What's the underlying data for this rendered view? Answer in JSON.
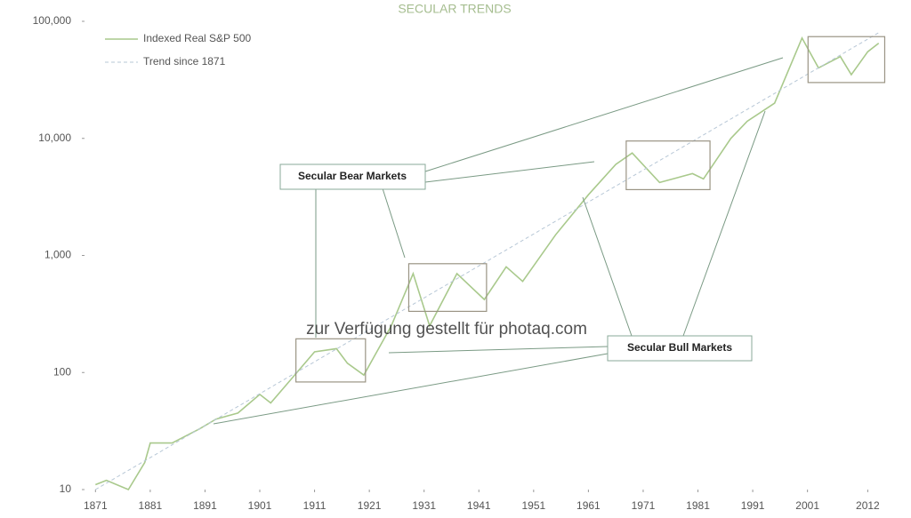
{
  "chart_data": {
    "type": "line",
    "title": "SECULAR TRENDS",
    "log_scale": true,
    "xlim": [
      1869,
      2016
    ],
    "xticks": [
      1871,
      1881,
      1891,
      1901,
      1911,
      1921,
      1931,
      1941,
      1951,
      1961,
      1971,
      1981,
      1991,
      2001,
      2012
    ],
    "ylim": [
      10,
      100000
    ],
    "yticks": [
      10,
      100,
      {
        "value": 1000,
        "label": "1,000"
      },
      {
        "value": 10000,
        "label": "10,000"
      },
      {
        "value": 100000,
        "label": "100,000"
      }
    ],
    "legend": "top-left",
    "series": [
      {
        "name": "Indexed Real S&P 500",
        "color": "#a9c98c",
        "dashed": false,
        "x": [
          1871,
          1873,
          1877,
          1880,
          1881,
          1885,
          1890,
          1893,
          1897,
          1901,
          1903,
          1906,
          1911,
          1915,
          1917,
          1920,
          1922,
          1925,
          1929,
          1932,
          1937,
          1942,
          1946,
          1949,
          1955,
          1961,
          1966,
          1969,
          1974,
          1980,
          1982,
          1987,
          1990,
          1995,
          2000,
          2003,
          2007,
          2009,
          2012,
          2014
        ],
        "values": [
          11,
          12,
          10,
          17,
          25,
          25,
          33,
          40,
          45,
          65,
          55,
          80,
          150,
          160,
          120,
          95,
          140,
          250,
          700,
          250,
          700,
          420,
          800,
          600,
          1500,
          3300,
          6000,
          7500,
          4200,
          5000,
          4500,
          10000,
          14000,
          20000,
          72000,
          40000,
          50000,
          35000,
          55000,
          65000
        ]
      },
      {
        "name": "Trend since 1871",
        "color": "#b7c7d6",
        "dashed": true,
        "x": [
          1871,
          2014
        ],
        "values": [
          10,
          80000
        ]
      }
    ],
    "annotations": [
      {
        "text": "Secular Bear Markets",
        "periods": [
          {
            "x": [
              1907.6,
              1920.3
            ],
            "y": [
              83,
              194
            ]
          },
          {
            "x": [
              1928.2,
              1942.4
            ],
            "y": [
              333,
              850
            ]
          },
          {
            "x": [
              1967.9,
              1983.2
            ],
            "y": [
              3650,
              9500
            ]
          },
          {
            "x": [
              2001.1,
              2015.1
            ],
            "y": [
              30000,
              74000
            ]
          }
        ]
      },
      {
        "text": "Secular Bull Markets"
      }
    ],
    "watermark": "zur Verfügung gestellt für photaq.com"
  }
}
